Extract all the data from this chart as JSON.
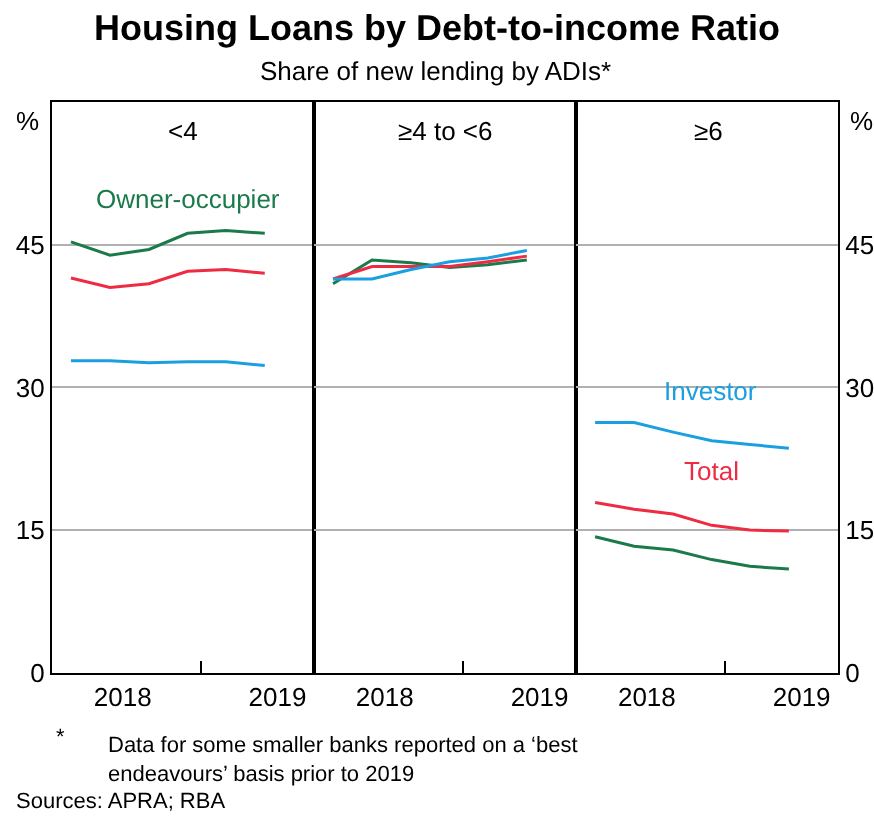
{
  "chart_data": [
    {
      "type": "line",
      "title": "<4",
      "ylabel": "%",
      "annotations": [
        "Housing Loans by Debt-to-income Ratio",
        "Share of new lending by ADIs*",
        "*   Data for some smaller banks reported on a ‘best endeavours’ basis prior to 2019",
        "Sources: APRA; RBA"
      ],
      "x": [
        "2018-03",
        "2018-06",
        "2018-09",
        "2018-12",
        "2019-03",
        "2019-06"
      ],
      "xlim": [
        "2018-01-15",
        "2019-09-25"
      ],
      "xticks": [
        {
          "value": "2018-07-01",
          "label": "2018"
        },
        {
          "value": "2019-01-01",
          "label": null
        },
        {
          "value": "2019-07-01",
          "label": "2019"
        }
      ],
      "ylim": [
        0,
        60
      ],
      "yticks": [
        0,
        15,
        30,
        45
      ],
      "grid": "y",
      "legend": false,
      "series": [
        {
          "name": "Owner-occupier",
          "color": "#1b7a4a",
          "values": [
            45.3,
            43.9,
            44.5,
            46.2,
            46.5,
            46.2
          ]
        },
        {
          "color": "#ef2b43",
          "values": [
            41.5,
            40.5,
            40.9,
            42.2,
            42.4,
            42.0
          ]
        },
        {
          "color": "#1a9fe0",
          "values": [
            32.8,
            32.8,
            32.6,
            32.7,
            32.7,
            32.3
          ]
        }
      ]
    },
    {
      "type": "line",
      "title": "≥4 to <6",
      "tick_labels": "x",
      "x": [
        "2018-03",
        "2018-06",
        "2018-09",
        "2018-12",
        "2019-03",
        "2019-06"
      ],
      "xlim": [
        "2018-01-15",
        "2019-09-25"
      ],
      "xticks": [
        {
          "value": "2018-07-01",
          "label": "2018"
        },
        {
          "value": "2019-01-01",
          "label": null
        },
        {
          "value": "2019-07-01",
          "label": "2019"
        }
      ],
      "ylim": [
        0,
        60
      ],
      "yticks": [
        0,
        15,
        30,
        45
      ],
      "grid": "y",
      "legend": false,
      "series": [
        {
          "color": "#1b7a4a",
          "values": [
            40.9,
            43.4,
            43.1,
            42.6,
            42.9,
            43.4
          ]
        },
        {
          "color": "#ef2b43",
          "values": [
            41.4,
            42.7,
            42.7,
            42.7,
            43.2,
            43.8
          ]
        },
        {
          "color": "#1a9fe0",
          "values": [
            41.4,
            41.4,
            42.4,
            43.2,
            43.6,
            44.4
          ]
        }
      ]
    },
    {
      "type": "line",
      "title": "≥6",
      "ylabel": "%",
      "x": [
        "2018-03",
        "2018-06",
        "2018-09",
        "2018-12",
        "2019-03",
        "2019-06"
      ],
      "xlim": [
        "2018-01-15",
        "2019-09-25"
      ],
      "xticks": [
        {
          "value": "2018-07-01",
          "label": "2018"
        },
        {
          "value": "2019-01-01",
          "label": null
        },
        {
          "value": "2019-07-01",
          "label": "2019"
        }
      ],
      "ylim": [
        0,
        60
      ],
      "yticks": [
        0,
        15,
        30,
        45
      ],
      "grid": "y",
      "legend": false,
      "series": [
        {
          "color": "#1b7a4a",
          "values": [
            14.3,
            13.3,
            12.9,
            11.9,
            11.2,
            10.9
          ]
        },
        {
          "name": "Total",
          "color": "#ef2b43",
          "values": [
            17.9,
            17.2,
            16.7,
            15.5,
            15.0,
            14.9
          ]
        },
        {
          "name": "Investor",
          "color": "#1a9fe0",
          "values": [
            26.3,
            26.3,
            25.3,
            24.4,
            24.0,
            23.6
          ]
        }
      ]
    }
  ]
}
